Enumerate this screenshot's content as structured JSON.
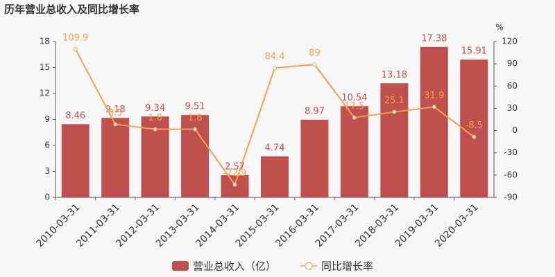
{
  "chart_data": {
    "type": "bar",
    "title": "历年营业总收入及同比增长率",
    "categories": [
      "2010-03-31",
      "2011-03-31",
      "2012-03-31",
      "2013-03-31",
      "2014-03-31",
      "2015-03-31",
      "2016-03-31",
      "2017-03-31",
      "2018-03-31",
      "2019-03-31",
      "2020-03-31"
    ],
    "series": [
      {
        "name": "营业总收入（亿）",
        "type": "bar",
        "color": "#c0504d",
        "values": [
          8.46,
          9.18,
          9.34,
          9.51,
          2.57,
          4.74,
          8.97,
          10.54,
          13.18,
          17.38,
          15.91
        ]
      },
      {
        "name": "同比增长率",
        "type": "line",
        "axis": "y2",
        "color": "#f5a04a",
        "values": [
          109.9,
          8.5,
          1.8,
          1.8,
          -72.9,
          84.4,
          89,
          17.5,
          25.1,
          31.9,
          -8.5
        ]
      }
    ],
    "ylim": [
      0,
      18
    ],
    "yticks": [
      0,
      3,
      6,
      9,
      12,
      15,
      18
    ],
    "y2lim": [
      -90,
      120
    ],
    "y2ticks": [
      -90,
      -60,
      -30,
      0,
      30,
      60,
      90,
      120
    ],
    "y2label": "%",
    "grid": false,
    "legend": "bottom"
  }
}
